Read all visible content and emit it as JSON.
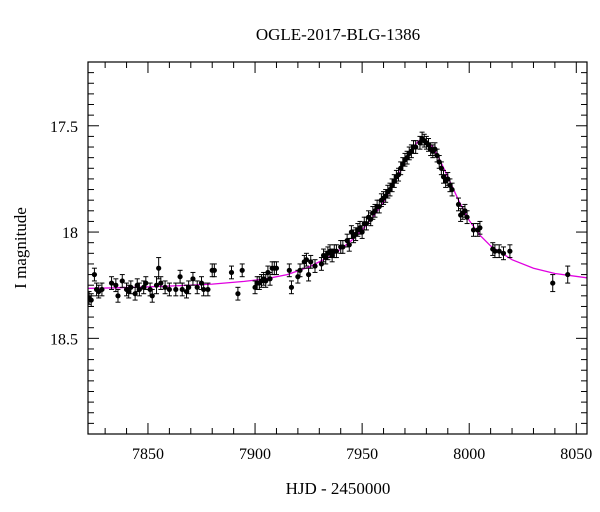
{
  "chart_data": {
    "type": "scatter",
    "title": "OGLE-2017-BLG-1386",
    "xlabel": "HJD - 2450000",
    "ylabel": "I magnitude",
    "xlim": [
      7822,
      8055
    ],
    "ylim": [
      18.95,
      17.2
    ],
    "y_inverted": true,
    "x_ticks": [
      7850,
      7900,
      7950,
      8000,
      8050
    ],
    "x_tick_labels": [
      "7850",
      "7900",
      "7950",
      "8000",
      "8050"
    ],
    "y_ticks": [
      17.5,
      18,
      18.5
    ],
    "y_tick_labels": [
      "17.5",
      "18",
      "18.5"
    ],
    "grid": false,
    "series": [
      {
        "kind": "points_with_errorbars",
        "color": "#000000",
        "points": [
          [
            7822.5,
            18.31,
            0.03
          ],
          [
            7823.5,
            18.32,
            0.03
          ],
          [
            7825,
            18.2,
            0.03
          ],
          [
            7826,
            18.27,
            0.03
          ],
          [
            7827,
            18.28,
            0.03
          ],
          [
            7828.5,
            18.27,
            0.03
          ],
          [
            7833,
            18.24,
            0.03
          ],
          [
            7835,
            18.25,
            0.03
          ],
          [
            7836,
            18.3,
            0.03
          ],
          [
            7838,
            18.23,
            0.03
          ],
          [
            7840,
            18.27,
            0.03
          ],
          [
            7841,
            18.28,
            0.03
          ],
          [
            7842,
            18.26,
            0.03
          ],
          [
            7844,
            18.29,
            0.03
          ],
          [
            7845,
            18.25,
            0.03
          ],
          [
            7846,
            18.27,
            0.03
          ],
          [
            7848,
            18.26,
            0.03
          ],
          [
            7849,
            18.24,
            0.03
          ],
          [
            7851,
            18.27,
            0.03
          ],
          [
            7852,
            18.3,
            0.03
          ],
          [
            7854,
            18.25,
            0.04
          ],
          [
            7855,
            18.17,
            0.05
          ],
          [
            7856,
            18.24,
            0.03
          ],
          [
            7858,
            18.26,
            0.03
          ],
          [
            7860,
            18.27,
            0.03
          ],
          [
            7863,
            18.27,
            0.03
          ],
          [
            7865,
            18.21,
            0.03
          ],
          [
            7866,
            18.27,
            0.03
          ],
          [
            7868,
            18.28,
            0.03
          ],
          [
            7869,
            18.26,
            0.03
          ],
          [
            7871,
            18.22,
            0.03
          ],
          [
            7873,
            18.26,
            0.03
          ],
          [
            7875,
            18.24,
            0.03
          ],
          [
            7876,
            18.27,
            0.03
          ],
          [
            7878,
            18.27,
            0.03
          ],
          [
            7880,
            18.18,
            0.03
          ],
          [
            7881,
            18.18,
            0.03
          ],
          [
            7889,
            18.19,
            0.03
          ],
          [
            7892,
            18.29,
            0.03
          ],
          [
            7894,
            18.18,
            0.03
          ],
          [
            7900,
            18.26,
            0.03
          ],
          [
            7901,
            18.24,
            0.03
          ],
          [
            7902,
            18.24,
            0.03
          ],
          [
            7903,
            18.23,
            0.03
          ],
          [
            7904,
            18.22,
            0.03
          ],
          [
            7905,
            18.23,
            0.03
          ],
          [
            7906,
            18.19,
            0.03
          ],
          [
            7907,
            18.22,
            0.03
          ],
          [
            7908,
            18.17,
            0.03
          ],
          [
            7909,
            18.17,
            0.03
          ],
          [
            7910,
            18.17,
            0.03
          ],
          [
            7916,
            18.18,
            0.03
          ],
          [
            7917,
            18.26,
            0.03
          ],
          [
            7920,
            18.21,
            0.03
          ],
          [
            7921,
            18.18,
            0.03
          ],
          [
            7923,
            18.14,
            0.03
          ],
          [
            7924,
            18.13,
            0.03
          ],
          [
            7925,
            18.2,
            0.03
          ],
          [
            7926,
            18.14,
            0.03
          ],
          [
            7928,
            18.16,
            0.03
          ],
          [
            7931,
            18.15,
            0.03
          ],
          [
            7932,
            18.11,
            0.03
          ],
          [
            7933,
            18.12,
            0.03
          ],
          [
            7934,
            18.1,
            0.03
          ],
          [
            7935,
            18.09,
            0.03
          ],
          [
            7936,
            18.11,
            0.03
          ],
          [
            7937,
            18.09,
            0.03
          ],
          [
            7938,
            18.09,
            0.03
          ],
          [
            7940,
            18.07,
            0.03
          ],
          [
            7941,
            18.07,
            0.03
          ],
          [
            7943,
            18.04,
            0.03
          ],
          [
            7944,
            18.06,
            0.03
          ],
          [
            7945,
            18.0,
            0.03
          ],
          [
            7946,
            18.02,
            0.03
          ],
          [
            7947,
            18.01,
            0.03
          ],
          [
            7948,
            17.99,
            0.03
          ],
          [
            7949,
            17.98,
            0.03
          ],
          [
            7950,
            18.0,
            0.03
          ],
          [
            7951,
            17.96,
            0.03
          ],
          [
            7952,
            17.96,
            0.03
          ],
          [
            7953,
            17.93,
            0.03
          ],
          [
            7954,
            17.94,
            0.03
          ],
          [
            7955,
            17.91,
            0.03
          ],
          [
            7956,
            17.9,
            0.03
          ],
          [
            7957,
            17.88,
            0.03
          ],
          [
            7958,
            17.88,
            0.03
          ],
          [
            7959,
            17.85,
            0.03
          ],
          [
            7960,
            17.84,
            0.03
          ],
          [
            7961,
            17.83,
            0.03
          ],
          [
            7962,
            17.81,
            0.03
          ],
          [
            7963,
            17.8,
            0.03
          ],
          [
            7964,
            17.78,
            0.03
          ],
          [
            7965,
            17.76,
            0.03
          ],
          [
            7966,
            17.74,
            0.03
          ],
          [
            7967,
            17.73,
            0.03
          ],
          [
            7968,
            17.7,
            0.03
          ],
          [
            7969,
            17.68,
            0.03
          ],
          [
            7970,
            17.66,
            0.03
          ],
          [
            7971,
            17.65,
            0.03
          ],
          [
            7972,
            17.63,
            0.03
          ],
          [
            7973,
            17.62,
            0.03
          ],
          [
            7974,
            17.6,
            0.03
          ],
          [
            7975,
            17.6,
            0.03
          ],
          [
            7977,
            17.58,
            0.03
          ],
          [
            7978,
            17.56,
            0.03
          ],
          [
            7979,
            17.57,
            0.03
          ],
          [
            7980,
            17.58,
            0.03
          ],
          [
            7981,
            17.59,
            0.03
          ],
          [
            7982,
            17.61,
            0.03
          ],
          [
            7983,
            17.62,
            0.03
          ],
          [
            7984,
            17.61,
            0.03
          ],
          [
            7985,
            17.64,
            0.03
          ],
          [
            7986,
            17.67,
            0.03
          ],
          [
            7987,
            17.7,
            0.03
          ],
          [
            7988,
            17.74,
            0.03
          ],
          [
            7989,
            17.76,
            0.03
          ],
          [
            7990,
            17.75,
            0.03
          ],
          [
            7991,
            17.78,
            0.03
          ],
          [
            7992,
            17.8,
            0.03
          ],
          [
            7995,
            17.87,
            0.03
          ],
          [
            7996,
            17.92,
            0.03
          ],
          [
            7997,
            17.91,
            0.03
          ],
          [
            7998,
            17.9,
            0.03
          ],
          [
            7999,
            17.93,
            0.03
          ],
          [
            8002,
            17.99,
            0.03
          ],
          [
            8004,
            17.99,
            0.03
          ],
          [
            8005,
            17.98,
            0.03
          ],
          [
            8011,
            18.08,
            0.03
          ],
          [
            8012,
            18.09,
            0.03
          ],
          [
            8014,
            18.09,
            0.03
          ],
          [
            8016,
            18.1,
            0.03
          ],
          [
            8019,
            18.09,
            0.03
          ],
          [
            8039,
            18.24,
            0.04
          ],
          [
            8046,
            18.2,
            0.04
          ]
        ]
      },
      {
        "kind": "model_curve",
        "color": "#e000e0",
        "x": [
          7822,
          7835,
          7850,
          7865,
          7880,
          7895,
          7905,
          7915,
          7925,
          7935,
          7940,
          7945,
          7950,
          7955,
          7960,
          7965,
          7970,
          7973,
          7976,
          7978,
          7980,
          7983,
          7986,
          7990,
          7995,
          8000,
          8005,
          8010,
          8020,
          8030,
          8040,
          8055
        ],
        "y": [
          18.265,
          18.262,
          18.258,
          18.252,
          18.245,
          18.232,
          18.22,
          18.2,
          18.165,
          18.115,
          18.08,
          18.04,
          17.99,
          17.93,
          17.86,
          17.77,
          17.67,
          17.61,
          17.575,
          17.56,
          17.57,
          17.6,
          17.655,
          17.74,
          17.85,
          17.945,
          18.015,
          18.065,
          18.13,
          18.17,
          18.195,
          18.215
        ]
      }
    ]
  }
}
